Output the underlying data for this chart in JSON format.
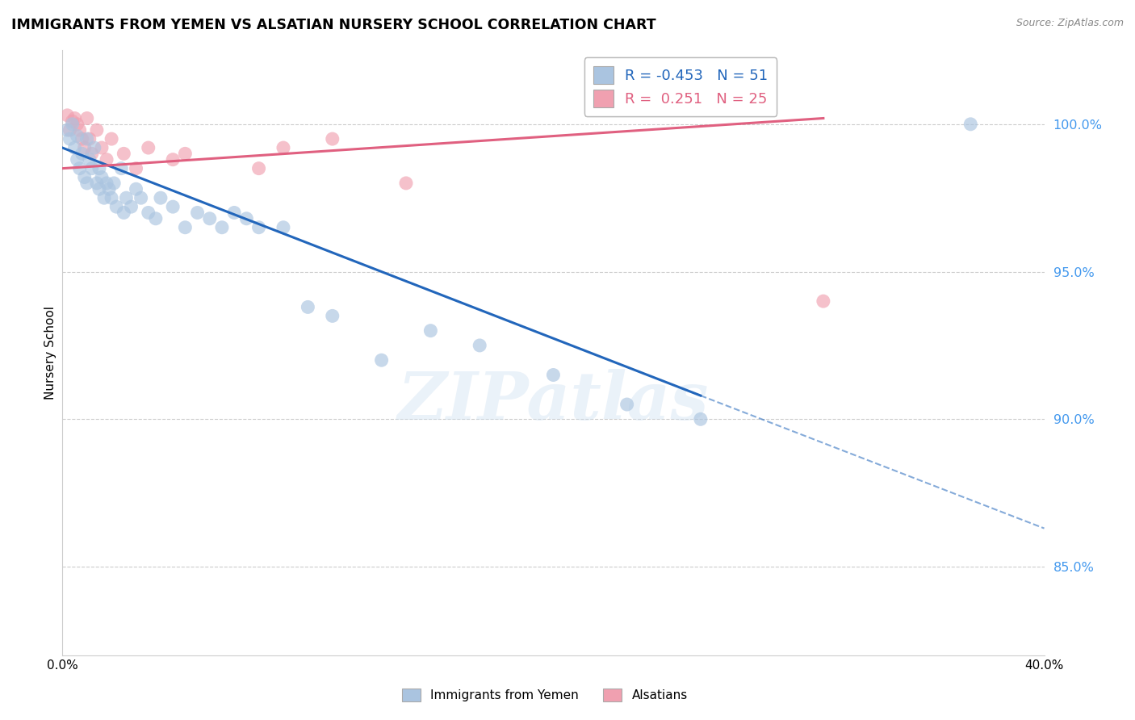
{
  "title": "IMMIGRANTS FROM YEMEN VS ALSATIAN NURSERY SCHOOL CORRELATION CHART",
  "source": "Source: ZipAtlas.com",
  "ylabel": "Nursery School",
  "xlim": [
    0.0,
    40.0
  ],
  "ylim": [
    82.0,
    102.5
  ],
  "yticks": [
    85.0,
    90.0,
    95.0,
    100.0
  ],
  "ytick_labels": [
    "85.0%",
    "90.0%",
    "95.0%",
    "100.0%"
  ],
  "xtick_positions": [
    0.0,
    40.0
  ],
  "xtick_labels": [
    "0.0%",
    "40.0%"
  ],
  "legend_blue_r": "-0.453",
  "legend_blue_n": "51",
  "legend_pink_r": "0.251",
  "legend_pink_n": "25",
  "blue_color": "#aac4e0",
  "pink_color": "#f0a0b0",
  "blue_line_color": "#2266bb",
  "pink_line_color": "#e06080",
  "watermark": "ZIPatlas",
  "blue_scatter_x": [
    0.2,
    0.3,
    0.4,
    0.5,
    0.6,
    0.6,
    0.7,
    0.8,
    0.9,
    1.0,
    1.0,
    1.1,
    1.2,
    1.3,
    1.4,
    1.5,
    1.5,
    1.6,
    1.7,
    1.8,
    1.9,
    2.0,
    2.1,
    2.2,
    2.4,
    2.5,
    2.6,
    2.8,
    3.0,
    3.2,
    3.5,
    3.8,
    4.0,
    4.5,
    5.0,
    5.5,
    6.0,
    6.5,
    7.0,
    7.5,
    8.0,
    9.0,
    10.0,
    11.0,
    13.0,
    15.0,
    17.0,
    20.0,
    23.0,
    26.0,
    37.0
  ],
  "blue_scatter_y": [
    99.8,
    99.5,
    100.0,
    99.2,
    98.8,
    99.6,
    98.5,
    99.0,
    98.2,
    99.5,
    98.0,
    98.8,
    98.5,
    99.2,
    98.0,
    97.8,
    98.5,
    98.2,
    97.5,
    98.0,
    97.8,
    97.5,
    98.0,
    97.2,
    98.5,
    97.0,
    97.5,
    97.2,
    97.8,
    97.5,
    97.0,
    96.8,
    97.5,
    97.2,
    96.5,
    97.0,
    96.8,
    96.5,
    97.0,
    96.8,
    96.5,
    96.5,
    93.8,
    93.5,
    92.0,
    93.0,
    92.5,
    91.5,
    90.5,
    90.0,
    100.0
  ],
  "pink_scatter_x": [
    0.2,
    0.3,
    0.4,
    0.5,
    0.6,
    0.7,
    0.8,
    0.9,
    1.0,
    1.1,
    1.2,
    1.4,
    1.6,
    1.8,
    2.0,
    2.5,
    3.0,
    3.5,
    4.5,
    5.0,
    8.0,
    9.0,
    11.0,
    14.0,
    31.0
  ],
  "pink_scatter_y": [
    100.3,
    99.8,
    100.1,
    100.2,
    100.0,
    99.8,
    99.5,
    99.2,
    100.2,
    99.5,
    99.0,
    99.8,
    99.2,
    98.8,
    99.5,
    99.0,
    98.5,
    99.2,
    98.8,
    99.0,
    98.5,
    99.2,
    99.5,
    98.0,
    94.0
  ],
  "blue_regr_x0": 0.0,
  "blue_regr_y0": 99.2,
  "blue_regr_x1": 26.0,
  "blue_regr_y1": 90.8,
  "blue_dash_x0": 26.0,
  "blue_dash_y0": 90.8,
  "blue_dash_x1": 40.0,
  "blue_dash_y1": 86.3,
  "pink_regr_x0": 0.0,
  "pink_regr_y0": 98.5,
  "pink_regr_x1": 31.0,
  "pink_regr_y1": 100.2
}
